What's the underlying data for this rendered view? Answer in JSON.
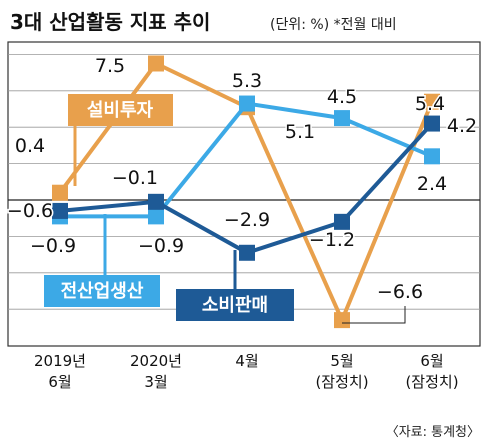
{
  "chart_data": {
    "type": "line",
    "title": "3대 산업활동 지표 추이",
    "subtitle": "(단위: %) *전월 대비",
    "source": "〈자료: 통계청〉",
    "categories": [
      [
        "2019년",
        "6월"
      ],
      [
        "2020년",
        "3월"
      ],
      [
        "4월"
      ],
      [
        "5월",
        "(잠정치)"
      ],
      [
        "6월",
        "(잠정치)"
      ]
    ],
    "series": [
      {
        "name": "설비투자",
        "color": "#E8A04C",
        "values": [
          0.4,
          7.5,
          5.1,
          -6.6,
          5.4
        ],
        "labels": [
          "0.4",
          "7.5",
          "5.1",
          "−6.6",
          "5.4"
        ]
      },
      {
        "name": "전산업생산",
        "color": "#3CA9E6",
        "values": [
          -0.9,
          -0.9,
          5.3,
          4.5,
          2.4
        ],
        "labels": [
          "−0.9",
          "−0.9",
          "5.3",
          "4.5",
          "2.4"
        ]
      },
      {
        "name": "소비판매",
        "color": "#1E5A96",
        "values": [
          -0.6,
          -0.1,
          -2.9,
          -1.2,
          4.2
        ],
        "labels": [
          "−0.6",
          "−0.1",
          "−2.9",
          "−1.2",
          "4.2"
        ]
      }
    ],
    "ylim": [
      -8,
      10
    ],
    "grid": true,
    "legend": "inline labels"
  }
}
